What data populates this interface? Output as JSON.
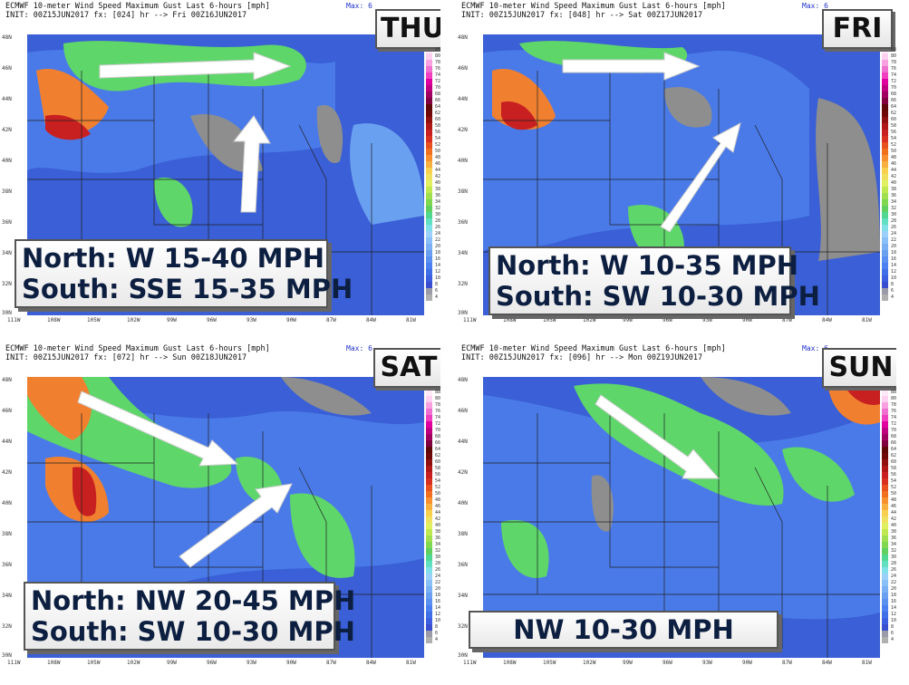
{
  "panels": [
    {
      "day": "THU",
      "title": "ECMWF 10-meter Wind Speed Maximum Gust Last 6-hours [mph]",
      "init": "INIT: 00Z15JUN2017 fx: [024] hr --> Fri 00Z16JUN2017",
      "max_label": "Max: 6",
      "note_lines": [
        "North: W 15-40 MPH",
        "South: SSE 15-35 MPH"
      ]
    },
    {
      "day": "FRI",
      "title": "ECMWF 10-meter Wind Speed Maximum Gust Last 6-hours [mph]",
      "init": "INIT: 00Z15JUN2017 fx: [048] hr --> Sat 00Z17JUN2017",
      "max_label": "Max: 6",
      "note_lines": [
        "North: W 10-35 MPH",
        "South: SW 10-30 MPH"
      ]
    },
    {
      "day": "SAT",
      "title": "ECMWF 10-meter Wind Speed Maximum Gust Last 6-hours [mph]",
      "init": "INIT: 00Z15JUN2017 fx: [072] hr --> Sun 00Z18JUN2017",
      "max_label": "Max: 6",
      "note_lines": [
        "North: NW 20-45 MPH",
        "South: SW 10-30 MPH"
      ]
    },
    {
      "day": "SUN",
      "title": "ECMWF 10-meter Wind Speed Maximum Gust Last 6-hours [mph]",
      "init": "INIT: 00Z15JUN2017 fx: [096] hr --> Mon 00Z19JUN2017",
      "max_label": "Max: 6",
      "note_lines": [
        "NW 10-30 MPH"
      ]
    }
  ],
  "lat_labels": [
    "48N",
    "46N",
    "44N",
    "42N",
    "40N",
    "38N",
    "36N",
    "34N",
    "32N",
    "30N"
  ],
  "lon_labels": [
    "111W",
    "108W",
    "105W",
    "102W",
    "99W",
    "96W",
    "93W",
    "90W",
    "87W",
    "84W",
    "81W"
  ],
  "colorbar": {
    "ticks": [
      "4",
      "6",
      "8",
      "10",
      "12",
      "14",
      "16",
      "18",
      "20",
      "22",
      "24",
      "26",
      "28",
      "30",
      "32",
      "34",
      "36",
      "38",
      "40",
      "42",
      "44",
      "46",
      "48",
      "50",
      "52",
      "54",
      "56",
      "58",
      "60",
      "62",
      "64",
      "66",
      "68",
      "70",
      "72",
      "74",
      "76",
      "78",
      "80",
      "88"
    ],
    "colors": [
      "#b0b0b0",
      "#9a9aa8",
      "#3a4fd0",
      "#3b5fe0",
      "#4070e8",
      "#4a80f0",
      "#5a90f0",
      "#6aa0f0",
      "#7ab0f4",
      "#8ac0f8",
      "#9ad0fa",
      "#7fe0e8",
      "#60e0c0",
      "#50d890",
      "#60d060",
      "#80d850",
      "#a0e050",
      "#c0e850",
      "#e0f060",
      "#f0e060",
      "#f8d050",
      "#f8b040",
      "#f89030",
      "#f07020",
      "#e85020",
      "#d83020",
      "#c82020",
      "#b01818",
      "#901010",
      "#700808",
      "#600808",
      "#800040",
      "#a00060",
      "#c00080",
      "#e000a0",
      "#f040c0",
      "#f070d0",
      "#f8a0e0",
      "#ffd0f0",
      "#ffe8f8"
    ]
  },
  "colors": {
    "ocean_blue": "#3a5fd6",
    "wind_blue": "#4a7ae8",
    "wind_green": "#5ed66a",
    "gust_orange": "#f08030",
    "gust_red": "#c82020",
    "land_gray": "#8e8e8e",
    "arrow_white": "#ffffff"
  }
}
